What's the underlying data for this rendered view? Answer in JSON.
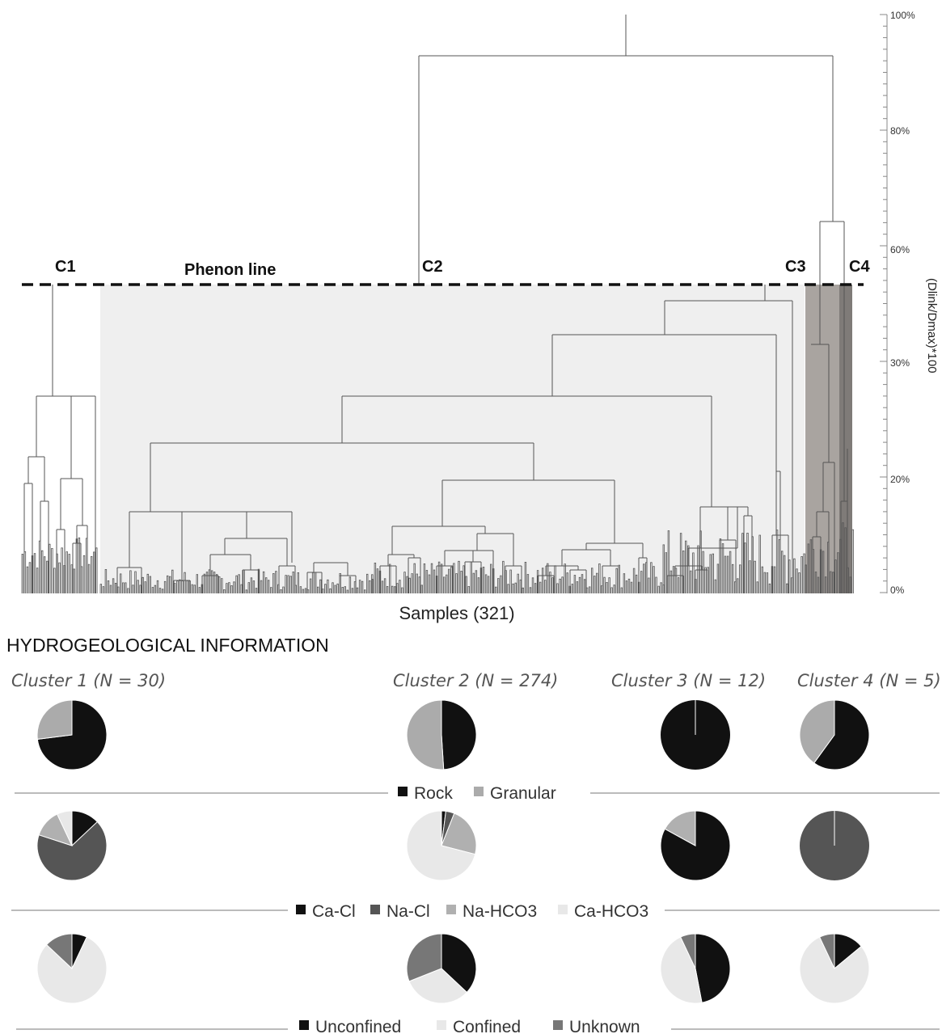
{
  "dendrogram": {
    "cluster_tags": [
      "C1",
      "C2",
      "C3",
      "C4"
    ],
    "phenon_label": "Phenon line",
    "x_label": "Samples (321)",
    "y_label": "(Dlink/Dmax)*100",
    "y_ticks": [
      "100%",
      "80%",
      "60%",
      "30%",
      "20%",
      "0%"
    ]
  },
  "section_title": "HYDROGEOLOGICAL INFORMATION",
  "cluster_titles": [
    "Cluster 1 (N = 30)",
    "Cluster 2 (N = 274)",
    "Cluster 3 (N = 12)",
    "Cluster 4 (N = 5)"
  ],
  "legends": {
    "aquifer": [
      "Rock",
      "Granular"
    ],
    "facies": [
      "Ca-Cl",
      "Na-Cl",
      "Na-HCO3",
      "Ca-HCO3"
    ],
    "confinement": [
      "Unconfined",
      "Confined",
      "Unknown"
    ]
  },
  "colors": {
    "rock": "#111111",
    "granular": "#ababab",
    "ca_cl": "#111111",
    "na_cl": "#555555",
    "na_hco3": "#b0b0b0",
    "ca_hco3": "#e8e8e8",
    "unconfined": "#111111",
    "confined": "#e8e8e8",
    "unknown": "#777777"
  },
  "chart_data": [
    {
      "type": "pie",
      "group": "aquifer",
      "categories": [
        "Rock",
        "Granular"
      ],
      "series": [
        {
          "name": "Cluster 1 (N = 30)",
          "values": [
            73,
            27
          ]
        },
        {
          "name": "Cluster 2 (N = 274)",
          "values": [
            49,
            51
          ]
        },
        {
          "name": "Cluster 3 (N = 12)",
          "values": [
            100,
            0
          ]
        },
        {
          "name": "Cluster 4 (N = 5)",
          "values": [
            60,
            40
          ]
        }
      ]
    },
    {
      "type": "pie",
      "group": "facies",
      "categories": [
        "Ca-Cl",
        "Na-Cl",
        "Na-HCO3",
        "Ca-HCO3"
      ],
      "series": [
        {
          "name": "Cluster 1 (N = 30)",
          "values": [
            13,
            67,
            13,
            7
          ]
        },
        {
          "name": "Cluster 2 (N = 274)",
          "values": [
            2,
            4,
            23,
            71
          ]
        },
        {
          "name": "Cluster 3 (N = 12)",
          "values": [
            83,
            0,
            17,
            0
          ]
        },
        {
          "name": "Cluster 4 (N = 5)",
          "values": [
            0,
            100,
            0,
            0
          ]
        }
      ]
    },
    {
      "type": "pie",
      "group": "confinement",
      "categories": [
        "Unconfined",
        "Confined",
        "Unknown"
      ],
      "series": [
        {
          "name": "Cluster 1 (N = 30)",
          "values": [
            7,
            80,
            13
          ]
        },
        {
          "name": "Cluster 2 (N = 274)",
          "values": [
            37,
            32,
            31
          ]
        },
        {
          "name": "Cluster 3 (N = 12)",
          "values": [
            47,
            46,
            7
          ]
        },
        {
          "name": "Cluster 4 (N = 5)",
          "values": [
            14,
            79,
            7
          ]
        }
      ]
    }
  ]
}
